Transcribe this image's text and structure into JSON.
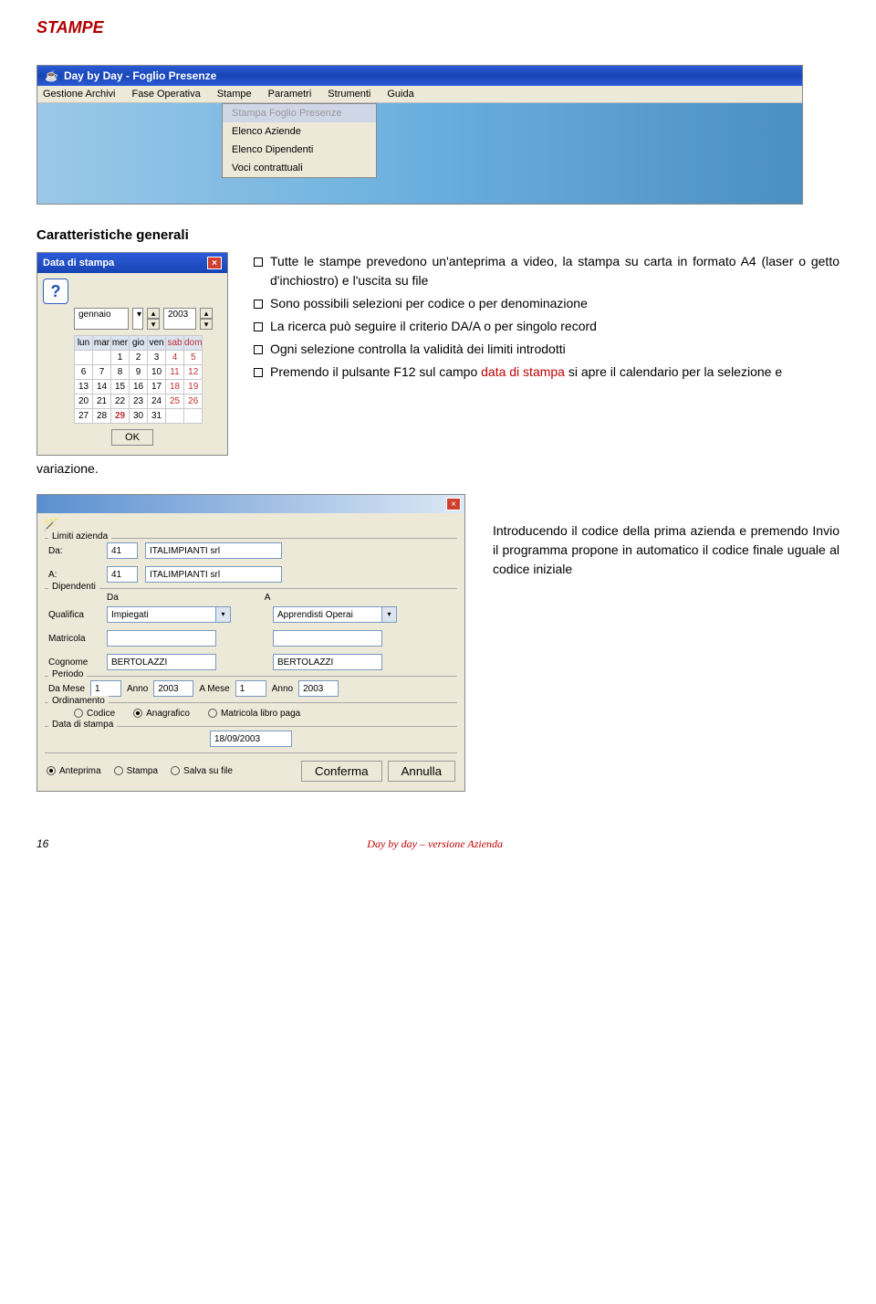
{
  "heading": "STAMPE",
  "window1": {
    "title": "Day by Day - Foglio Presenze",
    "menu": [
      "Gestione Archivi",
      "Fase Operativa",
      "Stampe",
      "Parametri",
      "Strumenti",
      "Guida"
    ],
    "dropdown": {
      "disabled": "Stampa Foglio Presenze",
      "items": [
        "Elenco Aziende",
        "Elenco Dipendenti",
        "Voci contrattuali"
      ]
    }
  },
  "subheading": "Caratteristiche generali",
  "calendar": {
    "title": "Data di stampa",
    "month": "gennaio",
    "year": "2003",
    "dow": [
      "lun",
      "mar",
      "mer",
      "gio",
      "ven",
      "sab",
      "dom"
    ],
    "rows": [
      [
        "",
        "",
        "1",
        "2",
        "3",
        "4",
        "5"
      ],
      [
        "6",
        "7",
        "8",
        "9",
        "10",
        "11",
        "12"
      ],
      [
        "13",
        "14",
        "15",
        "16",
        "17",
        "18",
        "19"
      ],
      [
        "20",
        "21",
        "22",
        "23",
        "24",
        "25",
        "26"
      ],
      [
        "27",
        "28",
        "29",
        "30",
        "31",
        "",
        ""
      ]
    ],
    "today": "29",
    "ok": "OK"
  },
  "bullets": [
    {
      "pre": "Tutte le stampe prevedono un'anteprima a video, la stampa su carta in formato A4 (laser o getto d'inchiostro) e l'uscita su file"
    },
    {
      "pre": "Sono possibili selezioni per codice o per denominazione"
    },
    {
      "pre": "La ricerca può seguire il criterio DA/A o per singolo record"
    },
    {
      "pre": "Ogni selezione controlla la validità dei limiti introdotti"
    },
    {
      "pre": "Premendo il pulsante F12 sul campo ",
      "red": "data di stampa",
      "post": " si apre il calendario per la selezione e"
    }
  ],
  "variazione": "variazione.",
  "limits": {
    "groups": {
      "azienda": "Limiti azienda",
      "dip": "Dipendenti",
      "periodo": "Periodo",
      "ord": "Ordinamento",
      "data": "Data di stampa"
    },
    "da_label": "Da:",
    "a_label": "A:",
    "da_code": "41",
    "da_name": "ITALIMPIANTI srl",
    "a_code": "41",
    "a_name": "ITALIMPIANTI srl",
    "col_da": "Da",
    "col_a": "A",
    "qualifica_label": "Qualifica",
    "qualifica_da": "Impiegati",
    "qualifica_a": "Apprendisti Operai",
    "matricola_label": "Matricola",
    "cognome_label": "Cognome",
    "cognome_da": "BERTOLAZZI",
    "cognome_a": "BERTOLAZZI",
    "damese": "Da Mese",
    "damese_v": "1",
    "anno": "Anno",
    "anno1": "2003",
    "amese": "A Mese",
    "amese_v": "1",
    "anno2": "2003",
    "ord_items": [
      "Codice",
      "Anagrafico",
      "Matricola libro paga"
    ],
    "ord_selected": 1,
    "data_stampa": "18/09/2003",
    "out_items": [
      "Anteprima",
      "Stampa",
      "Salva su file"
    ],
    "out_selected": 0,
    "conferma": "Conferma",
    "annulla": "Annulla"
  },
  "intro_text": "Introducendo il codice della prima azienda e premendo Invio il programma propone in automatico il codice finale uguale al codice iniziale",
  "footer": {
    "page": "16",
    "center": "Day by day – versione Azienda"
  }
}
